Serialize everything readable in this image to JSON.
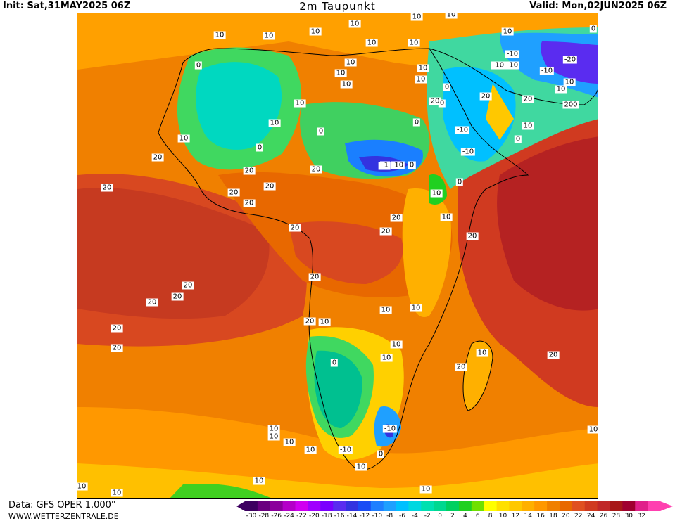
{
  "header": {
    "init": "Init: Sat,31MAY2025 06Z",
    "title": "2m Taupunkt",
    "valid": "Valid: Mon,02JUN2025 06Z"
  },
  "footer": {
    "data_source": "Data: GFS OPER 1.000°",
    "site": "WWW.WETTERZENTRALE.DE"
  },
  "legend": {
    "ticks": [
      "-30",
      "-28",
      "-26",
      "-24",
      "-22",
      "-20",
      "-18",
      "-16",
      "-14",
      "-12",
      "-10",
      "-8",
      "-6",
      "-4",
      "-2",
      "0",
      "2",
      "4",
      "6",
      "8",
      "10",
      "12",
      "14",
      "16",
      "18",
      "20",
      "22",
      "24",
      "26",
      "28",
      "30",
      "32"
    ],
    "colors": [
      "#3d0060",
      "#6a007f",
      "#8b009c",
      "#b400c8",
      "#d000f0",
      "#a000ff",
      "#7a00ff",
      "#5a2cf0",
      "#3333e0",
      "#1a4df5",
      "#1f7fff",
      "#1fa0ff",
      "#00c0ff",
      "#00d8e0",
      "#00e0b0",
      "#00d890",
      "#00d060",
      "#20d020",
      "#70e000",
      "#ffff00",
      "#ffe000",
      "#ffc800",
      "#ffb000",
      "#ff9800",
      "#f08000",
      "#e86800",
      "#e05020",
      "#d03a20",
      "#c02828",
      "#a81818",
      "#a00030",
      "#e0208a",
      "#ff40b0"
    ]
  },
  "contour_labels": [
    {
      "t": "10"
    },
    {
      "t": "10"
    },
    {
      "t": "10"
    },
    {
      "t": "10"
    },
    {
      "t": "10"
    },
    {
      "t": "10"
    },
    {
      "t": "10"
    },
    {
      "t": "10"
    },
    {
      "t": "10"
    },
    {
      "t": "10"
    },
    {
      "t": "0"
    },
    {
      "t": "10"
    },
    {
      "t": "10"
    },
    {
      "t": "10"
    },
    {
      "t": "20"
    },
    {
      "t": "0"
    },
    {
      "t": "0"
    },
    {
      "t": "10"
    },
    {
      "t": "0"
    },
    {
      "t": "-1"
    },
    {
      "t": "-10"
    },
    {
      "t": "20"
    },
    {
      "t": "0"
    },
    {
      "t": "20"
    },
    {
      "t": "20"
    },
    {
      "t": "20"
    },
    {
      "t": "20"
    },
    {
      "t": "20"
    },
    {
      "t": "20"
    },
    {
      "t": "20"
    },
    {
      "t": "20"
    },
    {
      "t": "20"
    },
    {
      "t": "20"
    },
    {
      "t": "20"
    },
    {
      "t": "20"
    },
    {
      "t": "20"
    },
    {
      "t": "20"
    },
    {
      "t": "20"
    },
    {
      "t": "20"
    },
    {
      "t": "20"
    },
    {
      "t": "10"
    },
    {
      "t": "10"
    },
    {
      "t": "10"
    },
    {
      "t": "0"
    },
    {
      "t": "10"
    },
    {
      "t": "10"
    },
    {
      "t": "10"
    },
    {
      "t": "10"
    },
    {
      "t": "10"
    },
    {
      "t": "-10"
    },
    {
      "t": "-10"
    },
    {
      "t": "0"
    },
    {
      "t": "10"
    },
    {
      "t": "10"
    },
    {
      "t": "10"
    },
    {
      "t": "10"
    },
    {
      "t": "10"
    },
    {
      "t": "20"
    },
    {
      "t": "10"
    },
    {
      "t": "20"
    },
    {
      "t": "10"
    },
    {
      "t": "10"
    },
    {
      "t": "10"
    },
    {
      "t": "-10"
    },
    {
      "t": "-10"
    },
    {
      "t": "-10"
    },
    {
      "t": "-10"
    },
    {
      "t": "-20"
    },
    {
      "t": "10"
    },
    {
      "t": "10"
    },
    {
      "t": "20"
    },
    {
      "t": "200"
    },
    {
      "t": "0"
    },
    {
      "t": "0"
    },
    {
      "t": "-10"
    },
    {
      "t": "0"
    },
    {
      "t": "10"
    },
    {
      "t": "-10"
    },
    {
      "t": "0"
    },
    {
      "t": "10"
    },
    {
      "t": "10"
    },
    {
      "t": "20"
    },
    {
      "t": "10"
    },
    {
      "t": "0"
    },
    {
      "t": "0"
    },
    {
      "t": "10"
    },
    {
      "t": "10"
    }
  ]
}
